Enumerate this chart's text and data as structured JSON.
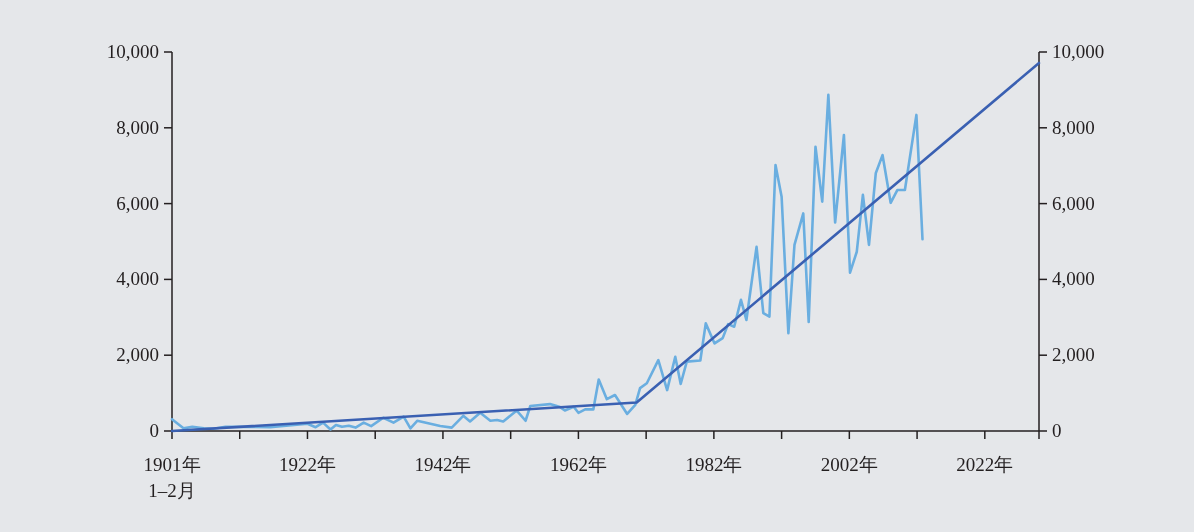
{
  "chart_data": {
    "type": "line",
    "xlim": [
      1902,
      2030
    ],
    "xticks": [
      {
        "value": 1902,
        "label": "1901年\n1–2月"
      },
      {
        "value": 1912,
        "label": null
      },
      {
        "value": 1922,
        "label": "1922年"
      },
      {
        "value": 1932,
        "label": null
      },
      {
        "value": 1942,
        "label": "1942年"
      },
      {
        "value": 1952,
        "label": null
      },
      {
        "value": 1962,
        "label": "1962年"
      },
      {
        "value": 1972,
        "label": null
      },
      {
        "value": 1982,
        "label": "1982年"
      },
      {
        "value": 1992,
        "label": null
      },
      {
        "value": 2002,
        "label": "2002年"
      },
      {
        "value": 2012,
        "label": null
      },
      {
        "value": 2022,
        "label": "2022年"
      }
    ],
    "ylim": [
      0,
      10000
    ],
    "yticks": [
      0,
      {
        "value": 2000,
        "label": "2,000"
      },
      {
        "value": 4000,
        "label": "4,000"
      },
      {
        "value": 6000,
        "label": "6,000"
      },
      {
        "value": 8000,
        "label": "8,000"
      },
      {
        "value": 10000,
        "label": "10,000"
      }
    ],
    "y2lim": [
      0,
      10000
    ],
    "y2ticks": [
      0,
      {
        "value": 2000,
        "label": "2,000"
      },
      {
        "value": 4000,
        "label": "4,000"
      },
      {
        "value": 6000,
        "label": "6,000"
      },
      {
        "value": 8000,
        "label": "8,000"
      },
      {
        "value": 10000,
        "label": "10,000"
      }
    ],
    "series": [
      {
        "color": "#6aaee0",
        "x": [
          1902,
          1903.7,
          1905,
          1906.7,
          1908.1,
          1909.9,
          1912.1,
          1916.5,
          1922,
          1923.2,
          1924.3,
          1925.4,
          1926.2,
          1927.1,
          1928.1,
          1929.1,
          1930.3,
          1931.4,
          1933.2,
          1934.7,
          1936.2,
          1937.2,
          1938.2,
          1941.6,
          1943.3,
          1945,
          1946,
          1947.5,
          1949,
          1950,
          1950.9,
          1952.9,
          1954.2,
          1954.9,
          1957.8,
          1959.3,
          1960,
          1961.3,
          1962,
          1963,
          1964.2,
          1965,
          1966.2,
          1967.4,
          1969.2,
          1970.4,
          1971.1,
          1972.1,
          1973.8,
          1975.1,
          1976.3,
          1977.1,
          1978,
          1980,
          1980.8,
          1982.1,
          1983.3,
          1984.1,
          1985,
          1986,
          1986.8,
          1988.3,
          1989.3,
          1990.2,
          1991.1,
          1992,
          1993,
          1993.9,
          1995.2,
          1996,
          1997,
          1998,
          1998.9,
          1999.9,
          2001.2,
          2002.1,
          2003.1,
          2004,
          2004.9,
          2005.9,
          2006.9,
          2008.1,
          2009.1,
          2010.2,
          2011.9,
          2012.8
        ],
        "values": [
          310,
          70,
          110,
          70,
          60,
          110,
          110,
          100,
          190,
          100,
          220,
          40,
          160,
          110,
          140,
          90,
          220,
          130,
          350,
          220,
          380,
          70,
          270,
          130,
          90,
          400,
          250,
          480,
          270,
          290,
          250,
          540,
          270,
          660,
          710,
          630,
          540,
          640,
          480,
          570,
          570,
          1360,
          840,
          950,
          450,
          690,
          1130,
          1260,
          1870,
          1080,
          1960,
          1240,
          1830,
          1860,
          2840,
          2310,
          2450,
          2820,
          2750,
          3460,
          2930,
          4860,
          3110,
          3020,
          7020,
          6180,
          2580,
          4910,
          5740,
          2880,
          7500,
          6050,
          8870,
          5500,
          7810,
          4180,
          4730,
          6230,
          4910,
          6800,
          7280,
          6020,
          6360,
          6360,
          8340,
          5060
        ]
      },
      {
        "type": "line",
        "color": "#3a60b2",
        "x": [
          1902,
          1970.6,
          2030
        ],
        "values": [
          0,
          750,
          9710
        ]
      }
    ]
  }
}
